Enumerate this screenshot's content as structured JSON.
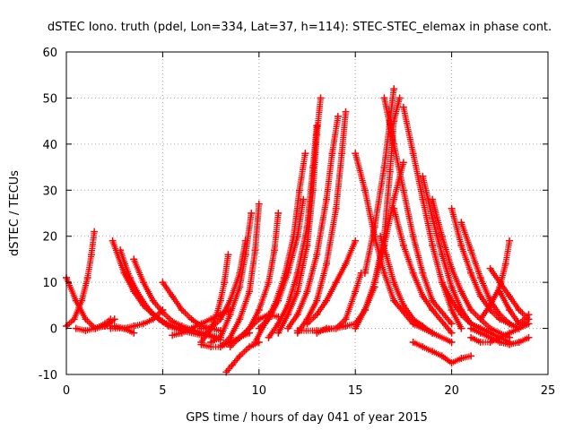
{
  "chart_data": {
    "type": "scatter",
    "title": "dSTEC Iono. truth (pdel, Lon=334, Lat=37, h=114): STEC-STEC_elemax in phase cont.",
    "xlabel": "GPS time / hours of day 041 of year 2015",
    "ylabel": "dSTEC  / TECUs",
    "xlim": [
      0,
      25
    ],
    "ylim": [
      -10,
      60
    ],
    "xticks": [
      0,
      5,
      10,
      15,
      20,
      25
    ],
    "yticks": [
      -10,
      0,
      10,
      20,
      30,
      40,
      50,
      60
    ],
    "xtick_labels": [
      "0",
      "5",
      "10",
      "15",
      "20",
      "25"
    ],
    "ytick_labels": [
      "-10",
      "0",
      "10",
      "20",
      "30",
      "40",
      "50",
      "60"
    ],
    "grid": true,
    "marker": "+",
    "color": "#ff0000",
    "series": [
      {
        "x": [
          0.0,
          0.5,
          1.0,
          1.5,
          2.0,
          2.5
        ],
        "y": [
          11,
          6,
          2,
          0,
          0.5,
          2
        ]
      },
      {
        "x": [
          0.0,
          0.4,
          0.8,
          1.1,
          1.3,
          1.45
        ],
        "y": [
          0.5,
          2,
          6,
          11,
          16,
          21
        ]
      },
      {
        "x": [
          0.5,
          1.0,
          1.5,
          2.0,
          2.3
        ],
        "y": [
          0,
          -0.5,
          0,
          1,
          2
        ]
      },
      {
        "x": [
          2.4,
          3.0,
          3.5,
          4.0,
          4.5,
          5.0,
          5.5,
          6.0,
          7.0,
          8.0
        ],
        "y": [
          19,
          12,
          8,
          5,
          3,
          1.5,
          0.5,
          0,
          -1,
          -2
        ]
      },
      {
        "x": [
          2.8,
          3.3,
          3.8,
          4.3,
          4.8,
          5.3,
          6.0,
          7.0
        ],
        "y": [
          17,
          11,
          7,
          4,
          2,
          0.5,
          -0.5,
          -1.5
        ]
      },
      {
        "x": [
          3.5,
          4.0,
          4.5,
          5.0,
          5.5,
          6.0,
          7.0,
          8.0
        ],
        "y": [
          15,
          10,
          6,
          3.5,
          1.5,
          0.5,
          -1,
          -2.5
        ]
      },
      {
        "x": [
          2.3,
          3.0,
          3.5,
          4.0,
          4.5,
          5.0
        ],
        "y": [
          0,
          0,
          0.5,
          1,
          2,
          4
        ]
      },
      {
        "x": [
          1.5,
          2.0,
          2.5,
          3.0,
          3.5
        ],
        "y": [
          0,
          0.5,
          0.5,
          0,
          -1
        ]
      },
      {
        "x": [
          5.0,
          5.5,
          6.0,
          6.5,
          7.0,
          7.5,
          8.0
        ],
        "y": [
          10,
          7,
          4,
          2,
          0.5,
          0,
          -0.5
        ]
      },
      {
        "x": [
          5.5,
          6.0,
          6.5,
          7.0,
          7.5,
          8.0,
          8.5
        ],
        "y": [
          -1.5,
          -1,
          0,
          1,
          2,
          3,
          4
        ]
      },
      {
        "x": [
          7.0,
          7.5,
          7.8,
          8.0,
          8.2,
          8.4
        ],
        "y": [
          -3,
          0,
          3,
          6,
          10,
          16
        ]
      },
      {
        "x": [
          7.0,
          7.5,
          8.0,
          8.5,
          9.0,
          9.3
        ],
        "y": [
          0,
          0,
          2,
          6,
          12,
          19
        ]
      },
      {
        "x": [
          7.5,
          8.0,
          8.5,
          9.0,
          9.3,
          9.6
        ],
        "y": [
          -3,
          -2,
          3,
          9,
          16,
          25
        ]
      },
      {
        "x": [
          8.0,
          8.5,
          9.0,
          9.5,
          9.8,
          10.0
        ],
        "y": [
          -4,
          -2,
          2,
          8,
          17,
          27
        ]
      },
      {
        "x": [
          8.3,
          8.6,
          9.0,
          9.5,
          10.0
        ],
        "y": [
          -9.5,
          -8,
          -6,
          -4,
          -3
        ]
      },
      {
        "x": [
          7.0,
          7.5,
          8.0,
          8.5,
          9.0,
          9.5
        ],
        "y": [
          -3.5,
          -4,
          -4,
          -3,
          -2,
          -1
        ]
      },
      {
        "x": [
          8.5,
          9.0,
          9.5,
          10.0,
          10.5,
          11.0
        ],
        "y": [
          -4,
          -2,
          0,
          2,
          3,
          2.5
        ]
      },
      {
        "x": [
          9.0,
          9.5,
          10.0,
          10.5,
          10.8,
          11.0
        ],
        "y": [
          -2,
          0,
          4,
          10,
          17,
          25
        ]
      },
      {
        "x": [
          10.0,
          10.5,
          11.0,
          11.5,
          12.0,
          12.3
        ],
        "y": [
          0,
          2,
          6,
          12,
          20,
          28
        ]
      },
      {
        "x": [
          9.8,
          10.3,
          10.8,
          11.3,
          11.8,
          12.1,
          12.4
        ],
        "y": [
          -3,
          1,
          5,
          11,
          20,
          30,
          38
        ]
      },
      {
        "x": [
          10.5,
          11.0,
          11.5,
          12.0,
          12.5,
          12.8,
          13.0
        ],
        "y": [
          -2,
          1,
          5,
          12,
          22,
          35,
          44
        ]
      },
      {
        "x": [
          11.0,
          11.5,
          12.0,
          12.5,
          12.8,
          13.0,
          13.2
        ],
        "y": [
          -1,
          3,
          8,
          18,
          30,
          42,
          50
        ]
      },
      {
        "x": [
          11.5,
          12.0,
          12.5,
          13.0,
          13.5,
          13.8,
          14.1
        ],
        "y": [
          0,
          3,
          8,
          16,
          28,
          38,
          46
        ]
      },
      {
        "x": [
          12.0,
          12.5,
          13.0,
          13.5,
          14.0,
          14.3,
          14.5
        ],
        "y": [
          -1,
          2,
          6,
          14,
          26,
          38,
          47
        ]
      },
      {
        "x": [
          12.5,
          13.0,
          13.5,
          14.0,
          14.5,
          15.0
        ],
        "y": [
          1,
          3,
          6,
          10,
          14,
          19
        ]
      },
      {
        "x": [
          13.0,
          13.5,
          14.0,
          14.5,
          15.0,
          15.5,
          16.0
        ],
        "y": [
          -1,
          0,
          0,
          0.5,
          1,
          4,
          9
        ]
      },
      {
        "x": [
          12.0,
          13.0,
          14.0,
          14.5,
          15.0,
          15.3
        ],
        "y": [
          -0.5,
          -0.5,
          0,
          2,
          8,
          12
        ]
      },
      {
        "x": [
          15.0,
          15.5,
          16.0,
          16.5,
          17.0,
          18.0,
          19.0
        ],
        "y": [
          38,
          30,
          20,
          12,
          6,
          1,
          -1
        ]
      },
      {
        "x": [
          15.0,
          15.5,
          16.0,
          16.5,
          17.0,
          17.5
        ],
        "y": [
          0,
          4,
          10,
          18,
          28,
          36
        ]
      },
      {
        "x": [
          15.5,
          16.0,
          16.5,
          16.8,
          17.0
        ],
        "y": [
          12,
          22,
          35,
          45,
          52
        ]
      },
      {
        "x": [
          16.0,
          16.5,
          16.8,
          17.0,
          17.3
        ],
        "y": [
          10,
          20,
          34,
          45,
          50
        ]
      },
      {
        "x": [
          16.3,
          16.6,
          17.0,
          17.5,
          18.0,
          18.5,
          19.0,
          20.0
        ],
        "y": [
          20,
          16,
          10,
          5,
          2,
          0.5,
          -1,
          -3
        ]
      },
      {
        "x": [
          16.5,
          17.0,
          17.5,
          18.0,
          18.5,
          19.0,
          20.0
        ],
        "y": [
          50,
          40,
          30,
          20,
          12,
          6,
          1
        ]
      },
      {
        "x": [
          17.0,
          17.5,
          18.0,
          18.5,
          19.0,
          20.0
        ],
        "y": [
          26,
          18,
          12,
          7,
          4,
          -1
        ]
      },
      {
        "x": [
          17.5,
          18.0,
          18.5,
          19.0,
          19.5,
          20.0,
          20.5
        ],
        "y": [
          48,
          38,
          28,
          18,
          10,
          4,
          0
        ]
      },
      {
        "x": [
          18.0,
          18.5,
          19.0,
          19.5,
          20.0,
          20.5,
          21.0
        ],
        "y": [
          -3,
          -4,
          -5,
          -6,
          -7.5,
          -6.5,
          -6
        ]
      },
      {
        "x": [
          18.5,
          19.0,
          19.5,
          20.0,
          20.5,
          21.0,
          21.5,
          22.0
        ],
        "y": [
          33,
          24,
          16,
          9,
          4,
          1,
          0,
          -1
        ]
      },
      {
        "x": [
          19.0,
          19.5,
          20.0,
          20.5,
          21.0,
          21.5,
          22.0,
          23.0
        ],
        "y": [
          28,
          20,
          13,
          8,
          4,
          2,
          0,
          -2
        ]
      },
      {
        "x": [
          19.5,
          20.0,
          20.5,
          21.0,
          21.5,
          22.0,
          22.5,
          23.0
        ],
        "y": [
          10,
          6,
          3,
          1,
          0,
          -1,
          -2,
          -3
        ]
      },
      {
        "x": [
          20.0,
          20.5,
          21.0,
          21.5,
          22.0,
          22.5,
          23.0,
          23.5
        ],
        "y": [
          26,
          18,
          12,
          7,
          4,
          2,
          1,
          0
        ]
      },
      {
        "x": [
          20.5,
          21.0,
          21.5,
          22.0,
          22.5,
          23.0,
          23.5,
          24.0
        ],
        "y": [
          23,
          17,
          11,
          6,
          3,
          1,
          0,
          1
        ]
      },
      {
        "x": [
          21.0,
          21.5,
          22.0,
          22.5,
          23.0,
          23.5,
          24.0
        ],
        "y": [
          0,
          -1,
          -2,
          -3,
          -3.5,
          -3,
          -2
        ]
      },
      {
        "x": [
          21.5,
          22.0,
          22.5,
          22.8,
          23.0
        ],
        "y": [
          2,
          5,
          9,
          14,
          19
        ]
      },
      {
        "x": [
          22.5,
          23.0,
          23.5,
          24.0
        ],
        "y": [
          8,
          4,
          1,
          3
        ]
      },
      {
        "x": [
          21.0,
          21.5,
          22.0,
          22.5,
          23.0,
          23.5,
          24.0
        ],
        "y": [
          -2,
          -3,
          -3,
          -2,
          -1,
          0,
          2
        ]
      },
      {
        "x": [
          22.0,
          22.5,
          23.0,
          23.5,
          24.0
        ],
        "y": [
          13,
          10,
          7,
          4,
          2
        ]
      }
    ]
  }
}
